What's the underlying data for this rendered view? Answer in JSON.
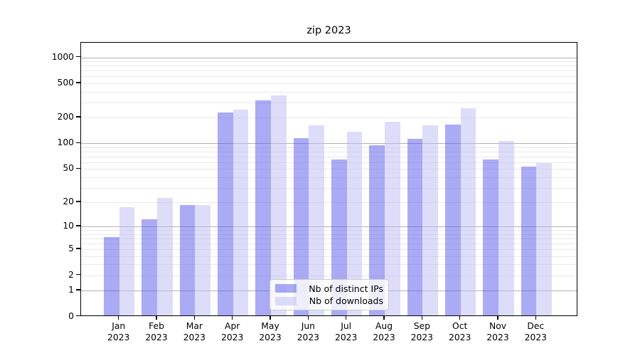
{
  "figure": {
    "title": "zip 2023"
  },
  "chart_data": {
    "type": "bar",
    "title": "zip 2023",
    "categories": [
      "Jan 2023",
      "Feb 2023",
      "Mar 2023",
      "Apr 2023",
      "May 2023",
      "Jun 2023",
      "Jul 2023",
      "Aug 2023",
      "Sep 2023",
      "Oct 2023",
      "Nov 2023",
      "Dec 2023"
    ],
    "series": [
      {
        "name": "Nb of distinct IPs",
        "values": [
          7,
          12,
          18,
          221,
          305,
          111,
          63,
          92,
          110,
          162,
          63,
          52
        ],
        "color": "#5656ec",
        "opacity": 0.5
      },
      {
        "name": "Nb of downloads",
        "values": [
          17,
          22,
          18,
          240,
          350,
          158,
          134,
          174,
          159,
          250,
          103,
          57
        ],
        "color": "#bcbcf4",
        "opacity": 0.5
      }
    ],
    "xlabel": "",
    "ylabel": "",
    "y_axis": {
      "scale": "log1p",
      "tick_values": [
        0,
        1,
        2,
        5,
        10,
        20,
        50,
        100,
        200,
        500,
        1000
      ],
      "tick_labels": [
        "0",
        "1",
        "2",
        "5",
        "10",
        "20",
        "50",
        "100",
        "200",
        "500",
        "1000"
      ],
      "max_value": 1500
    },
    "grid": {
      "enabled": true,
      "major_values": [
        1,
        10,
        100,
        1000
      ],
      "minor_values": [
        2,
        3,
        4,
        5,
        6,
        7,
        8,
        9,
        20,
        30,
        40,
        50,
        60,
        70,
        80,
        90,
        200,
        300,
        400,
        500,
        600,
        700,
        800,
        900
      ],
      "major_color": "#b2b2b2",
      "minor_color": "#e9e9e9"
    },
    "legend": {
      "location": "lower center"
    }
  }
}
